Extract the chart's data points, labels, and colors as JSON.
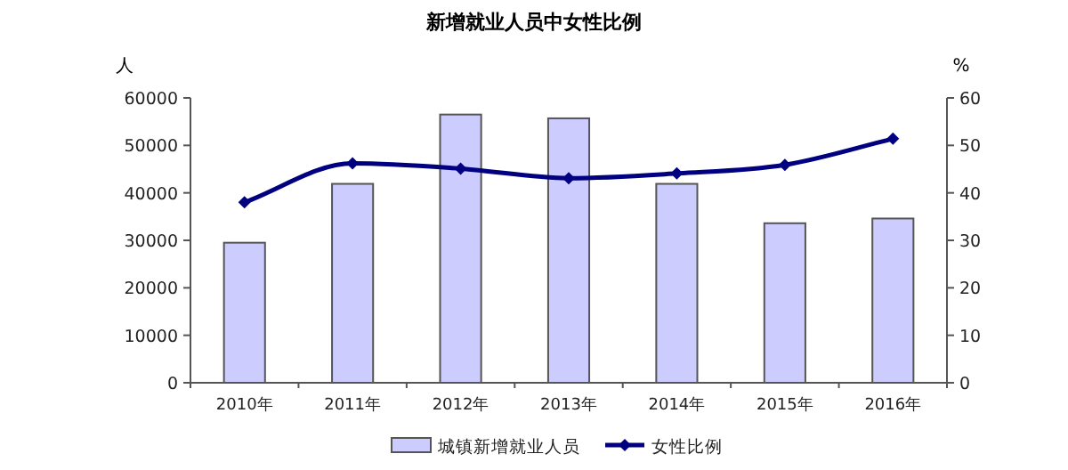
{
  "chart_data": {
    "type": "bar",
    "title": "新增就业人员中女性比例",
    "ylabel": "人",
    "y2label": "%",
    "categories": [
      "2010年",
      "2011年",
      "2012年",
      "2013年",
      "2014年",
      "2015年",
      "2016年"
    ],
    "series": [
      {
        "name": "城镇新增就业人员",
        "color": "#ccccff",
        "values": [
          29500,
          41900,
          56500,
          55700,
          41900,
          33600,
          34600
        ]
      },
      {
        "name": "女性比例",
        "type": "line",
        "axis": "y2",
        "color": "#000080",
        "marker": "diamond",
        "line_style": "solid",
        "values": [
          38.0,
          46.2,
          45.1,
          43.1,
          44.1,
          45.9,
          51.4
        ]
      }
    ],
    "ylim": [
      0,
      60000
    ],
    "yticks": [
      0,
      10000,
      20000,
      30000,
      40000,
      50000,
      60000
    ],
    "y2lim": [
      0,
      60
    ],
    "y2ticks": [
      0,
      10,
      20,
      30,
      40,
      50,
      60
    ],
    "grid": false,
    "legend": "bottom"
  }
}
